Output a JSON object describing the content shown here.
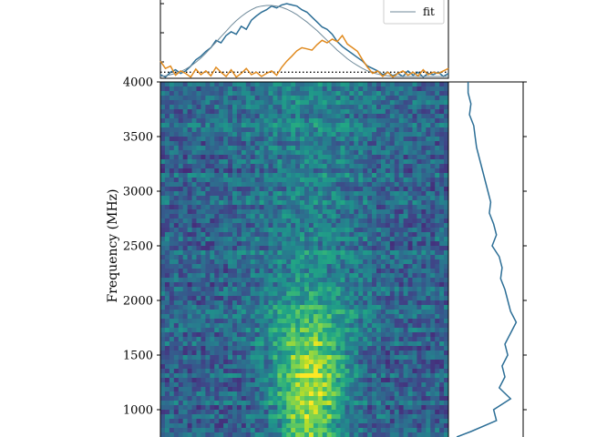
{
  "chart_data": [
    {
      "type": "line",
      "panel": "top",
      "legend": {
        "location": "upper-right",
        "entries": [
          "fit"
        ]
      },
      "baseline_style": "dotted",
      "series": [
        {
          "color": "#2c6e96",
          "values": [
            0.06,
            0.02,
            0.1,
            0.14,
            0.08,
            0.12,
            0.2,
            0.3,
            0.36,
            0.44,
            0.5,
            0.62,
            0.58,
            0.7,
            0.76,
            0.72,
            0.85,
            0.8,
            0.95,
            1.02,
            1.08,
            1.12,
            1.18,
            1.15,
            1.2,
            1.22,
            1.2,
            1.18,
            1.12,
            1.08,
            1.0,
            0.92,
            0.84,
            0.8,
            0.72,
            0.6,
            0.52,
            0.46,
            0.4,
            0.34,
            0.28,
            0.2,
            0.16,
            0.12,
            0.06,
            0.1,
            0.04,
            0.08,
            0.03,
            0.12,
            0.05,
            0.1,
            0.02,
            0.08,
            0.06,
            0.1,
            0.03,
            0.08
          ]
        },
        {
          "name": "fit",
          "color": "#6f8a9a",
          "values": [
            0.03,
            0.04,
            0.06,
            0.08,
            0.11,
            0.15,
            0.2,
            0.26,
            0.33,
            0.41,
            0.5,
            0.59,
            0.68,
            0.77,
            0.86,
            0.94,
            1.01,
            1.07,
            1.12,
            1.16,
            1.18,
            1.19,
            1.19,
            1.18,
            1.16,
            1.13,
            1.09,
            1.04,
            0.98,
            0.92,
            0.85,
            0.78,
            0.7,
            0.62,
            0.54,
            0.46,
            0.39,
            0.32,
            0.26,
            0.21,
            0.16,
            0.12,
            0.09,
            0.07,
            0.05,
            0.04,
            0.03,
            0.03,
            0.03,
            0.03,
            0.03,
            0.03,
            0.03,
            0.03,
            0.03,
            0.03,
            0.03,
            0.03
          ]
        },
        {
          "color": "#e08a1e",
          "values": [
            0.28,
            0.16,
            0.2,
            0.05,
            0.12,
            0.08,
            0.02,
            0.15,
            0.06,
            0.12,
            0.04,
            0.18,
            0.1,
            0.03,
            0.14,
            0.02,
            0.08,
            0.16,
            0.06,
            0.1,
            0.03,
            0.08,
            0.12,
            0.05,
            0.18,
            0.28,
            0.36,
            0.45,
            0.5,
            0.48,
            0.46,
            0.55,
            0.62,
            0.58,
            0.64,
            0.6,
            0.7,
            0.56,
            0.5,
            0.44,
            0.3,
            0.18,
            0.08,
            0.12,
            0.03,
            0.1,
            0.02,
            0.08,
            0.12,
            0.05,
            0.1,
            0.04,
            0.14,
            0.06,
            0.1,
            0.08,
            0.12,
            0.16
          ]
        }
      ],
      "baseline": 0.1
    },
    {
      "type": "heatmap",
      "panel": "main",
      "ylabel": "Frequency (MHz)",
      "yticks": [
        1000,
        1500,
        2000,
        2500,
        3000,
        3500,
        4000
      ],
      "ylim_visible": [
        750,
        4000
      ],
      "colormap": "viridis",
      "signal_center_fraction": 0.52,
      "signal_width_fraction": 0.18,
      "signal_peak_frequency": 1200
    },
    {
      "type": "line",
      "panel": "right",
      "color": "#2c6e96",
      "frequencies": [
        4000,
        3900,
        3800,
        3700,
        3600,
        3500,
        3400,
        3300,
        3200,
        3100,
        3000,
        2900,
        2800,
        2700,
        2600,
        2500,
        2400,
        2300,
        2200,
        2100,
        2000,
        1900,
        1800,
        1700,
        1600,
        1500,
        1400,
        1300,
        1200,
        1100,
        1000,
        900,
        800,
        750
      ],
      "values": [
        0.1,
        0.1,
        0.12,
        0.11,
        0.14,
        0.15,
        0.16,
        0.18,
        0.2,
        0.22,
        0.24,
        0.26,
        0.25,
        0.28,
        0.3,
        0.27,
        0.32,
        0.34,
        0.33,
        0.36,
        0.38,
        0.4,
        0.44,
        0.4,
        0.36,
        0.38,
        0.34,
        0.36,
        0.32,
        0.4,
        0.28,
        0.3,
        0.12,
        0.02
      ]
    }
  ]
}
